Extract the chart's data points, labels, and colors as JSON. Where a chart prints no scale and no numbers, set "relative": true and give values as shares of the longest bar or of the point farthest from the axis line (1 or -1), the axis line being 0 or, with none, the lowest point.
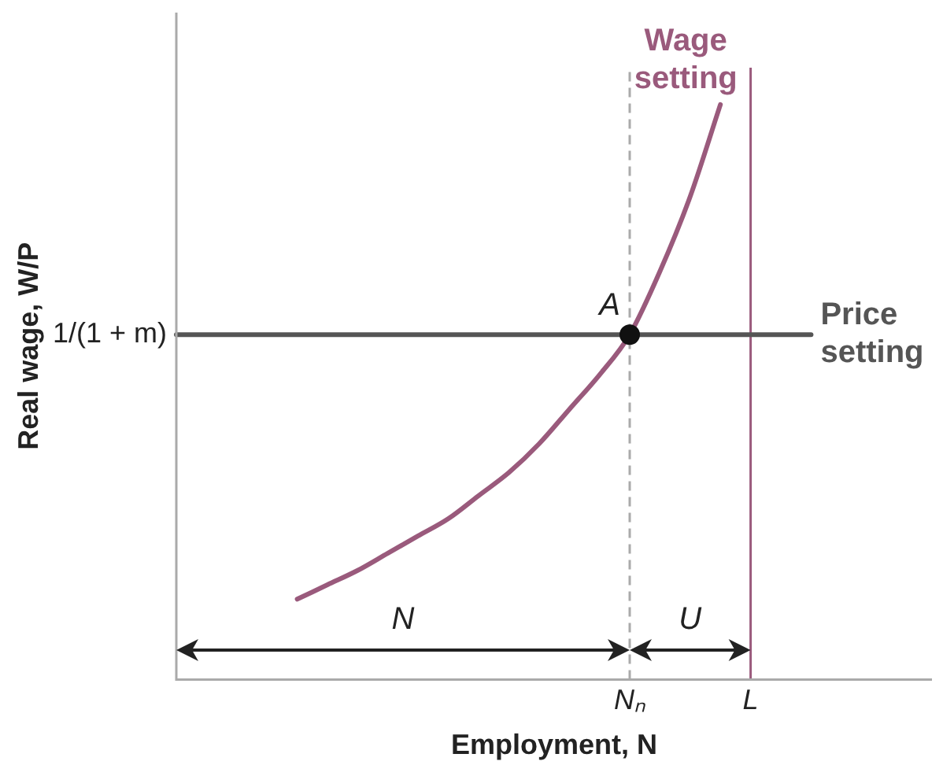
{
  "chart_data": {
    "type": "line",
    "relative": true,
    "xlabel": "Employment, N",
    "ylabel": "Real wage, W/P",
    "categories": [
      null,
      null,
      null,
      null,
      null,
      null,
      null,
      null,
      null,
      null,
      null,
      null,
      null,
      null,
      null,
      "Nₙ",
      null,
      null,
      null,
      "L",
      null,
      null,
      null,
      null,
      null,
      null
    ],
    "grid": false,
    "legend": false,
    "marker": "none",
    "series": [
      {
        "name": "Wage setting",
        "color": "#9a5a7c",
        "values": [
          null,
          null,
          null,
          null,
          0.14,
          0.165,
          0.19,
          0.22,
          0.25,
          0.28,
          0.32,
          0.36,
          0.41,
          0.47,
          0.53,
          0.6,
          0.71,
          0.84,
          1,
          null,
          null,
          null,
          null,
          null,
          null,
          null
        ]
      },
      {
        "name": "Price setting",
        "color": "#555555",
        "values": [
          0.6,
          0.6,
          0.6,
          0.6,
          0.6,
          0.6,
          0.6,
          0.6,
          0.6,
          0.6,
          0.6,
          0.6,
          0.6,
          0.6,
          0.6,
          0.6,
          0.6,
          0.6,
          0.6,
          0.6,
          0.6,
          0.6,
          null,
          null,
          null,
          null
        ]
      },
      {
        "type": "scatter",
        "color": "#111111",
        "marker": "circle",
        "values": [
          null,
          null,
          null,
          null,
          null,
          null,
          null,
          null,
          null,
          null,
          null,
          null,
          null,
          null,
          null,
          0.6,
          null,
          null,
          null,
          null,
          null,
          null,
          null,
          null,
          null,
          null
        ]
      }
    ],
    "ref_lines": [
      {
        "axis": "x",
        "value": "Nₙ",
        "color": "#aaaaaa",
        "line_style": "dashed"
      },
      {
        "axis": "x",
        "value": "L",
        "color": "#9a5a7c",
        "line_style": "solid"
      }
    ],
    "annotations": [
      {
        "text": "A",
        "x": "Nₙ",
        "y": 0.6
      },
      "N",
      "U",
      "1/(1 + m)"
    ]
  }
}
